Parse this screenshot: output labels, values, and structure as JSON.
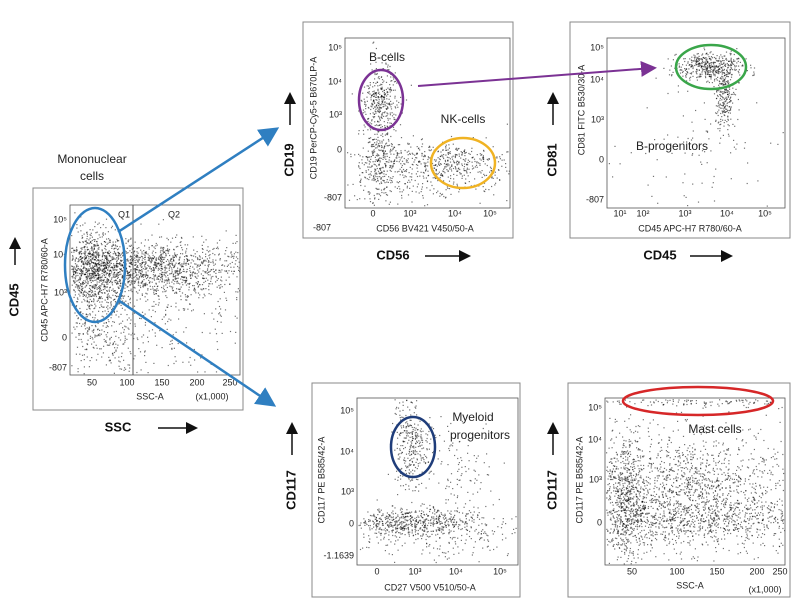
{
  "annotation": {
    "lines": [
      "Mononuclear",
      "cells"
    ]
  },
  "panels": [
    {
      "outer_y": "CD45",
      "outer_x": "SSC",
      "y_label": "CD45 APC-H7 R780/60-A",
      "x_label": "SSC-A",
      "x_unit": "(x1,000)",
      "yticks": [
        "10⁵",
        "10⁴",
        "10³",
        "0",
        "-807"
      ],
      "xticks": [
        "50",
        "100",
        "150",
        "200",
        "250"
      ],
      "quadrants": [
        "Q1",
        "Q2"
      ],
      "gates": []
    },
    {
      "outer_y": "CD19",
      "outer_x": "CD56",
      "y_label": "CD19 PerCP-Cy5-5 B670LP-A",
      "x_label": "CD56 BV421 V450/50-A",
      "yticks": [
        "10⁵",
        "10⁴",
        "10³",
        "0",
        "-807"
      ],
      "xticks": [
        "-807",
        "0",
        "10³",
        "10⁴",
        "10⁵"
      ],
      "gates": [
        {
          "lines": [
            "B-cells"
          ],
          "color": "#7b3294"
        },
        {
          "lines": [
            "NK-cells"
          ],
          "color": "#f0b323"
        }
      ]
    },
    {
      "outer_y": "CD81",
      "outer_x": "CD45",
      "y_label": "CD81 FITC B530/30-A",
      "x_label": "CD45 APC-H7 R780/60-A",
      "yticks": [
        "10⁵",
        "10⁴",
        "10³",
        "0",
        "-807"
      ],
      "xticks": [
        "10¹",
        "10²",
        "10³",
        "10⁴",
        "10⁵"
      ],
      "gates": [
        {
          "lines": [
            "B-progenitors"
          ],
          "color": "#3aa64a"
        }
      ]
    },
    {
      "outer_y": "CD117",
      "y_label": "CD117 PE B585/42-A",
      "x_label": "CD27 V500 V510/50-A",
      "yticks": [
        "10⁵",
        "10⁴",
        "10³",
        "0",
        "-1.1639"
      ],
      "xticks": [
        "0",
        "10³",
        "10⁴",
        "10⁵"
      ],
      "gates": [
        {
          "lines": [
            "Myeloid",
            "progenitors"
          ],
          "color": "#1f3d7a"
        }
      ]
    },
    {
      "outer_y": "CD117",
      "y_label": "CD117 PE B585/42-A",
      "x_label": "SSC-A",
      "x_unit": "(x1,000)",
      "yticks": [
        "10⁵",
        "10⁴",
        "10³",
        "0"
      ],
      "xticks": [
        "50",
        "100",
        "150",
        "200",
        "250"
      ],
      "gates": [
        {
          "lines": [
            "Mast cells"
          ],
          "color": "#d62728"
        }
      ]
    }
  ]
}
